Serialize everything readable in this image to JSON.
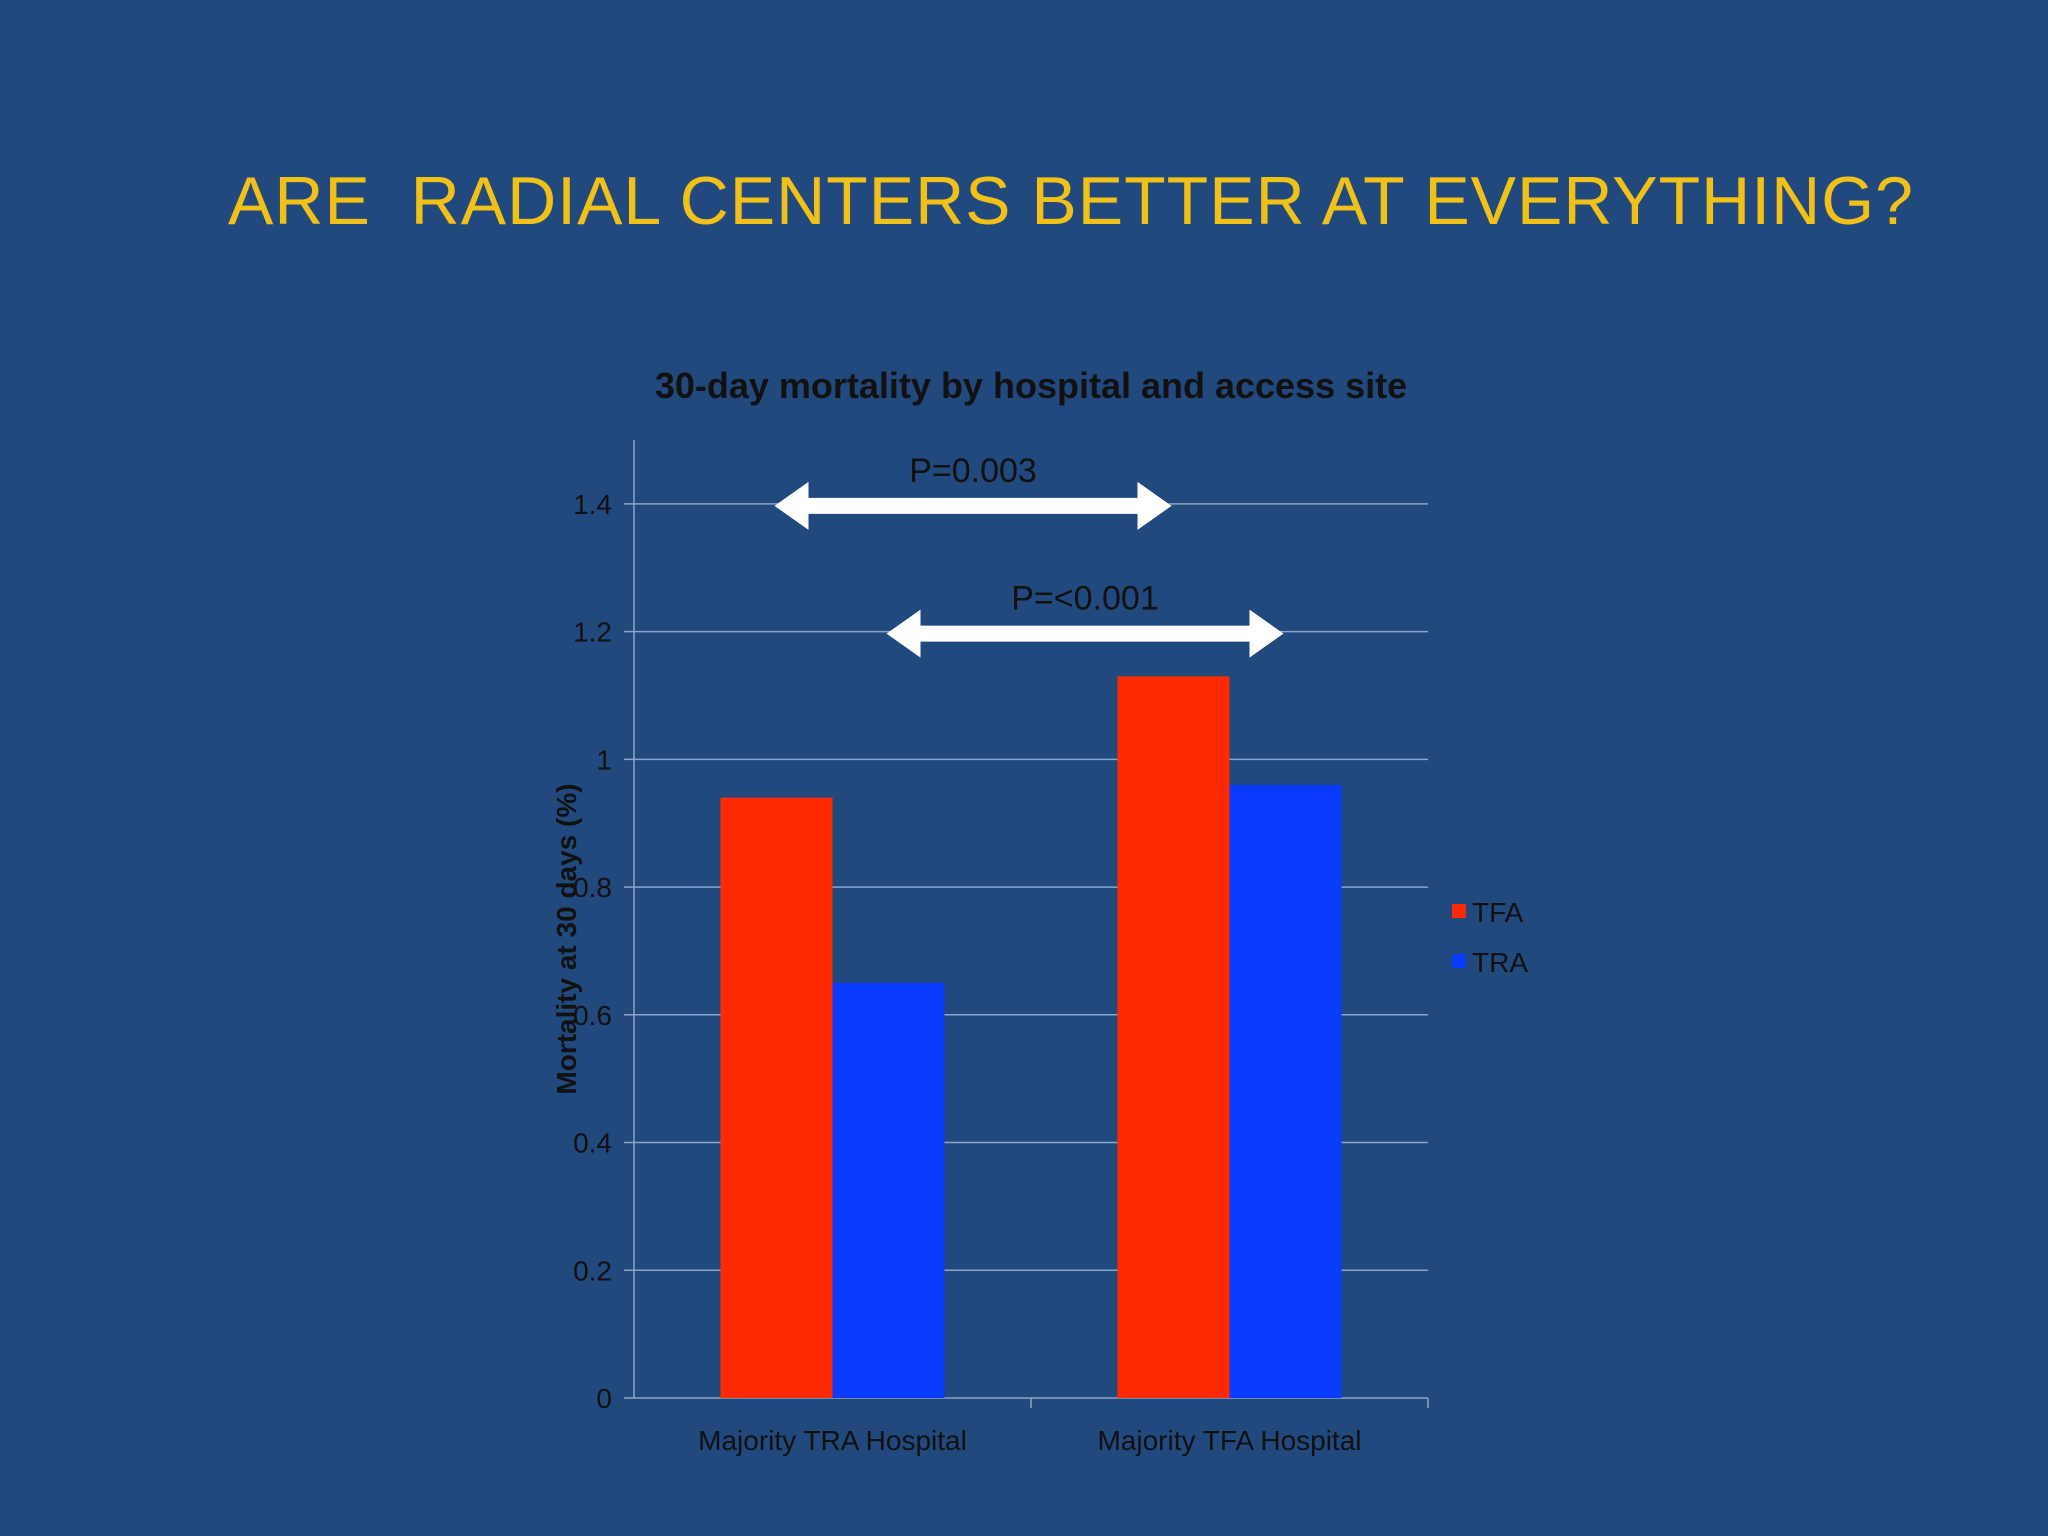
{
  "slide": {
    "title": "ARE  RADIAL CENTERS BETTER AT EVERYTHING?"
  },
  "chart_data": {
    "type": "bar",
    "title": "30-day mortality by hospital and access site",
    "xlabel": "",
    "ylabel": "Mortality at 30 days (%)",
    "categories": [
      "Majority TRA Hospital",
      "Majority TFA Hospital"
    ],
    "series": [
      {
        "name": "TFA",
        "values": [
          0.94,
          1.13
        ],
        "color": "#ff2a00"
      },
      {
        "name": "TRA",
        "values": [
          0.65,
          0.96
        ],
        "color": "#0a3cff"
      }
    ],
    "ylim": [
      0,
      1.5
    ],
    "yticks": [
      "0",
      "0.2",
      "0.4",
      "0.6",
      "0.8",
      "1",
      "1.2",
      "1.4"
    ],
    "grid": true,
    "legend": "right",
    "annotations": [
      {
        "text": "P=0.003",
        "from_category": 0,
        "from_series": 0,
        "to_category": 1,
        "to_series": 0,
        "y": 1.4
      },
      {
        "text": "P=<0.001",
        "from_category": 0,
        "from_series": 1,
        "to_category": 1,
        "to_series": 1,
        "y": 1.2
      }
    ]
  },
  "colors": {
    "background": "#21497e",
    "title": "#f2c117",
    "gridline": "#8ea4c4",
    "arrow": "#ffffff"
  }
}
